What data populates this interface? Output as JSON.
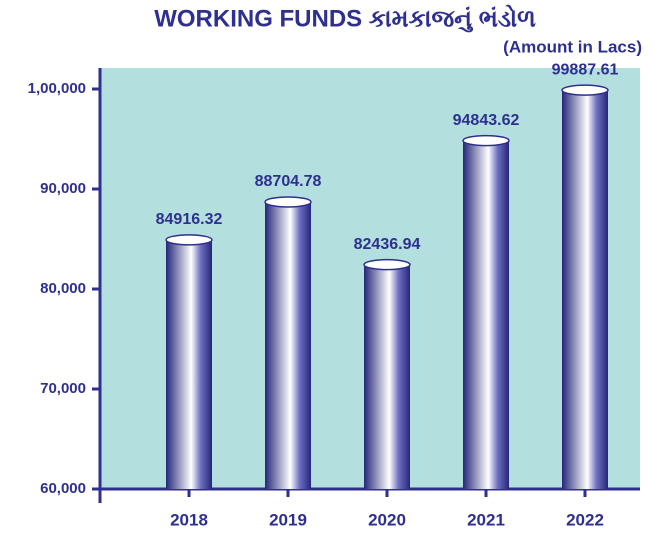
{
  "chart_data": {
    "type": "bar",
    "title": "WORKING FUNDS  કામકાજનું ભંડોળ",
    "subtitle": "(Amount in Lacs)",
    "categories": [
      "2018",
      "2019",
      "2020",
      "2021",
      "2022"
    ],
    "values": [
      84916.32,
      88704.78,
      82436.94,
      94843.62,
      99887.61
    ],
    "color": "#2e2f8f",
    "background": "#b3e0de",
    "ylim": [
      60000,
      102100
    ],
    "yticks": [
      {
        "value": 60000,
        "label": "60,000"
      },
      {
        "value": 70000,
        "label": "70,000"
      },
      {
        "value": 80000,
        "label": "80,000"
      },
      {
        "value": 90000,
        "label": "90,000"
      },
      {
        "value": 100000,
        "label": "1,00,000"
      }
    ],
    "grid": false
  }
}
